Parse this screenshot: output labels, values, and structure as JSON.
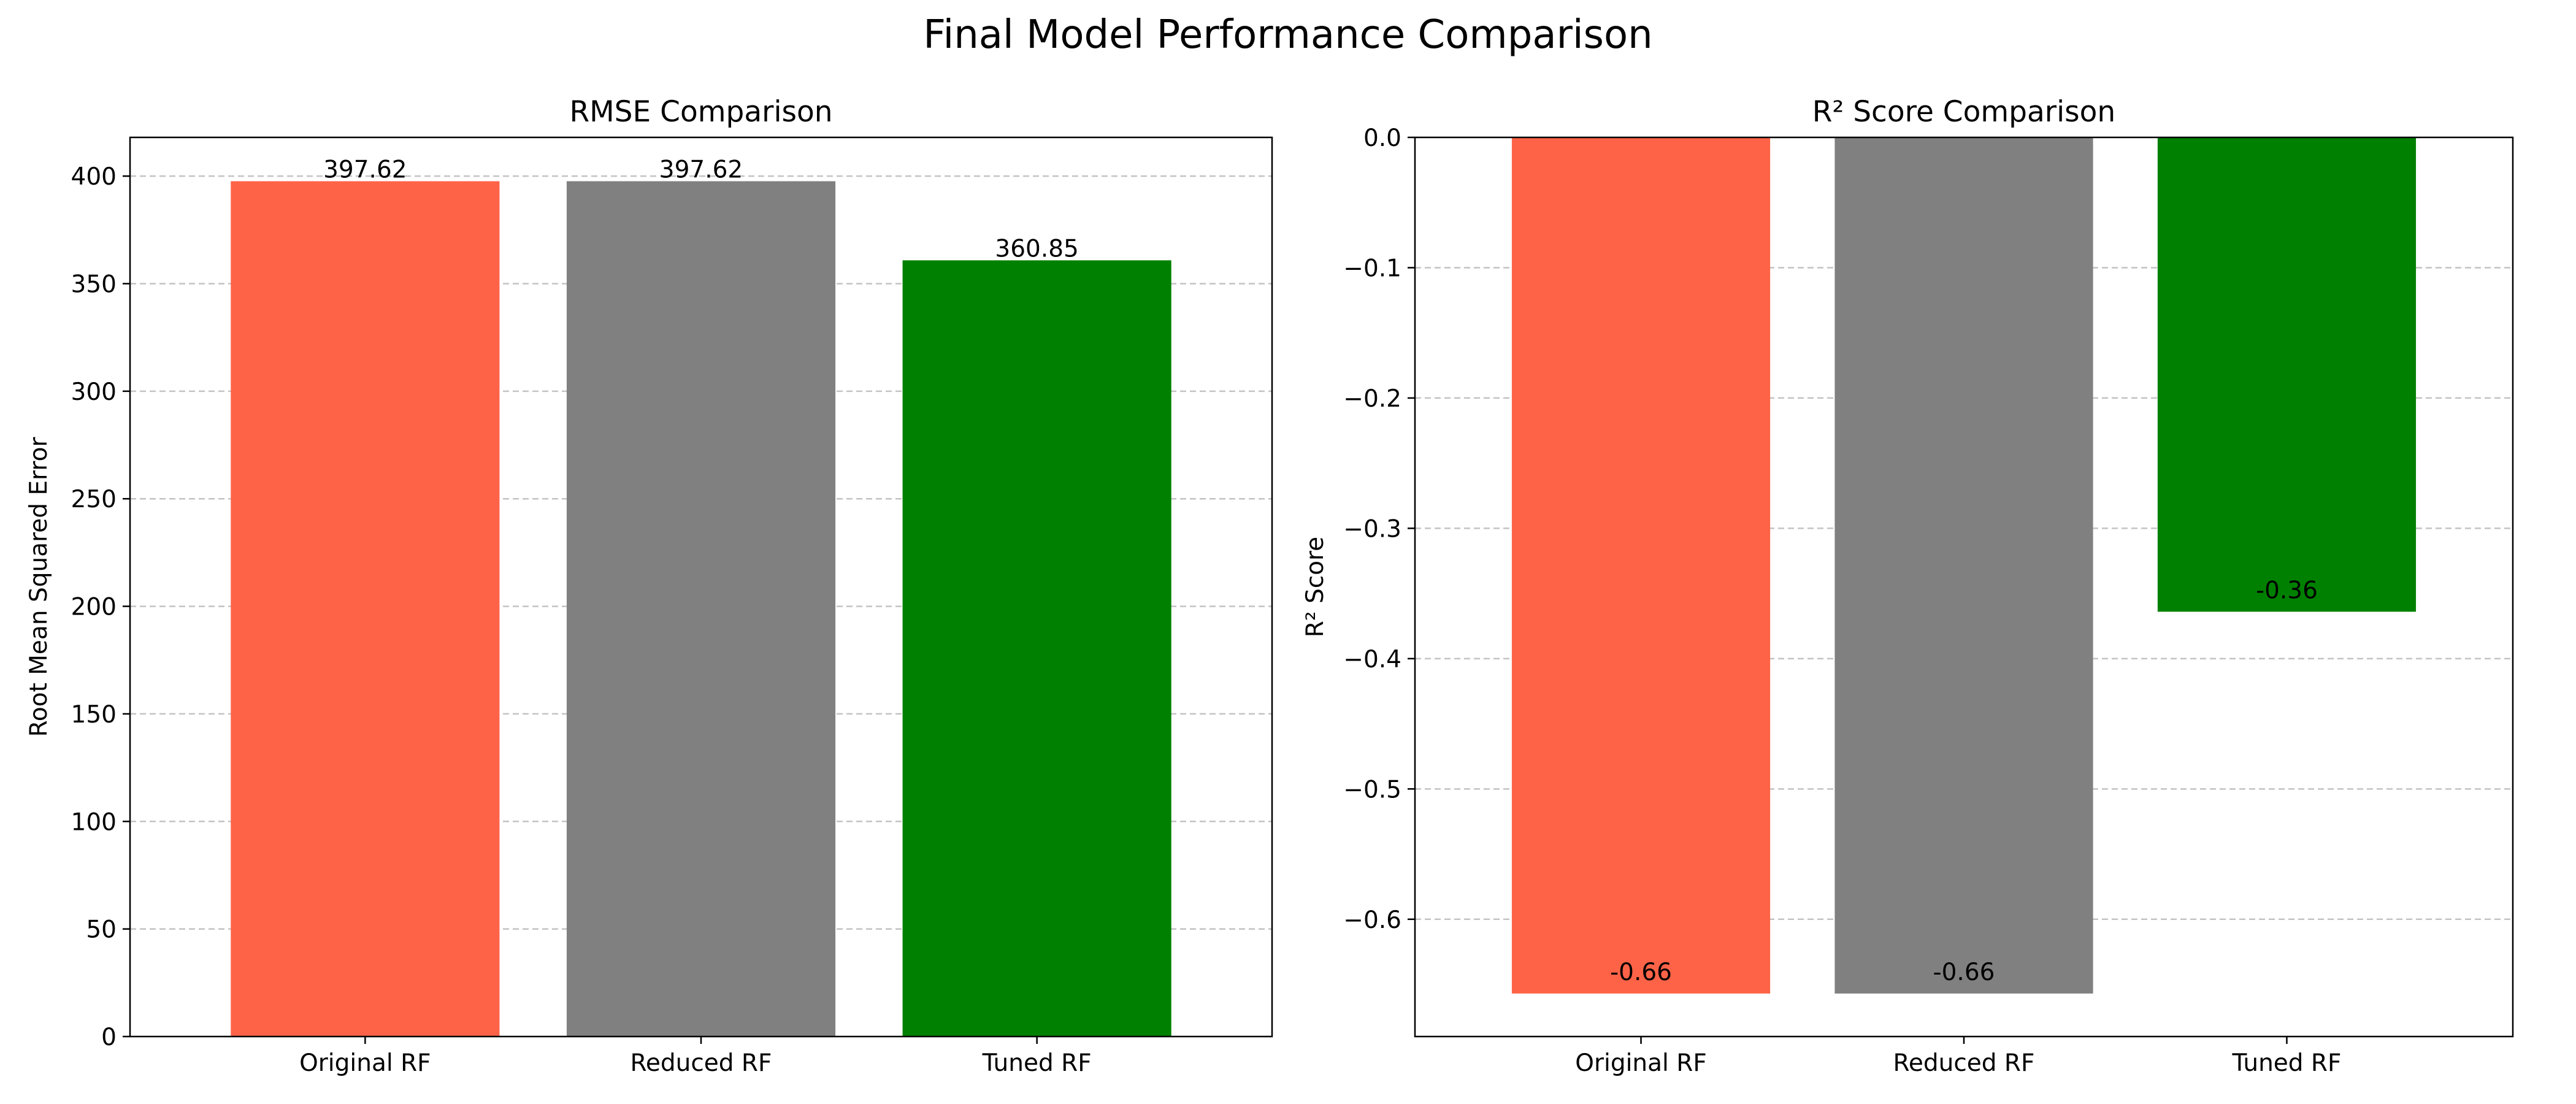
{
  "figure_title": "Final Model Performance Comparison",
  "chart_data": [
    {
      "type": "bar",
      "title": "RMSE Comparison",
      "xlabel": "",
      "ylabel": "Root Mean Squared Error",
      "categories": [
        "Original RF",
        "Reduced RF",
        "Tuned RF"
      ],
      "values": [
        397.62,
        397.62,
        360.85
      ],
      "value_labels": [
        "397.62",
        "397.62",
        "360.85"
      ],
      "colors": [
        "#ff6347",
        "#808080",
        "#008000"
      ],
      "ylim": [
        0,
        418
      ],
      "yticks": [
        0,
        50,
        100,
        150,
        200,
        250,
        300,
        350,
        400
      ],
      "ytick_labels": [
        "0",
        "50",
        "100",
        "150",
        "200",
        "250",
        "300",
        "350",
        "400"
      ],
      "grid": "y-dashed",
      "label_position": "above"
    },
    {
      "type": "bar",
      "title": "R² Score Comparison",
      "xlabel": "",
      "ylabel": "R² Score",
      "categories": [
        "Original RF",
        "Reduced RF",
        "Tuned RF"
      ],
      "values": [
        -0.657,
        -0.657,
        -0.364
      ],
      "value_labels": [
        "-0.66",
        "-0.66",
        "-0.36"
      ],
      "colors": [
        "#ff6347",
        "#808080",
        "#008000"
      ],
      "ylim": [
        -0.69,
        0.0
      ],
      "yticks": [
        0.0,
        -0.1,
        -0.2,
        -0.3,
        -0.4,
        -0.5,
        -0.6
      ],
      "ytick_labels": [
        "0.0",
        "−0.1",
        "−0.2",
        "−0.3",
        "−0.4",
        "−0.5",
        "−0.6"
      ],
      "grid": "y-dashed",
      "label_position": "bar-end"
    }
  ]
}
